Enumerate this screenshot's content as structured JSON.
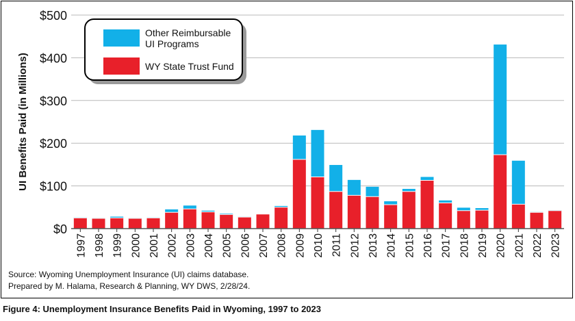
{
  "chart_data": {
    "type": "bar",
    "stacked": true,
    "ylabel": "UI Benefits Paid (in Millions)",
    "ylim": [
      0,
      500
    ],
    "yticks": [
      0,
      100,
      200,
      300,
      400,
      500
    ],
    "ytick_labels": [
      "$0",
      "$100",
      "$200",
      "$300",
      "$400",
      "$500"
    ],
    "grid": "horizontal",
    "legend_position": "top-left",
    "categories": [
      "1997",
      "1998",
      "1999",
      "2000",
      "2001",
      "2002",
      "2003",
      "2004",
      "2005",
      "2006",
      "2007",
      "2008",
      "2009",
      "2010",
      "2011",
      "2012",
      "2013",
      "2014",
      "2015",
      "2016",
      "2017",
      "2018",
      "2019",
      "2020",
      "2021",
      "2022",
      "2023"
    ],
    "series": [
      {
        "name": "WY State Trust Fund",
        "color": "#e8202a",
        "values": [
          25,
          24,
          25,
          24,
          25,
          38,
          46,
          39,
          33,
          27,
          34,
          50,
          162,
          121,
          87,
          78,
          75,
          56,
          87,
          113,
          60,
          42,
          43,
          173,
          57,
          38,
          42
        ]
      },
      {
        "name": "Other Reimbursable UI Programs",
        "color": "#12b0e8",
        "values": [
          1,
          1,
          3,
          1,
          1,
          7,
          8,
          3,
          2,
          1,
          0,
          3,
          56,
          110,
          62,
          36,
          23,
          8,
          6,
          8,
          6,
          7,
          5,
          258,
          102,
          1,
          1
        ]
      }
    ],
    "legend": [
      {
        "label": "Other Reimbursable UI Programs",
        "label_lines": [
          "Other Reimbursable",
          "UI Programs"
        ],
        "color": "#12b0e8"
      },
      {
        "label": "WY State Trust Fund",
        "label_lines": [
          "WY State Trust Fund"
        ],
        "color": "#e8202a"
      }
    ]
  },
  "source_lines": [
    "Source: Wyoming Unemployment Insurance (UI) claims database.",
    "Prepared by M. Halama, Research & Planning, WY DWS, 2/28/24."
  ],
  "caption": "Figure 4: Unemployment Insurance Benefits Paid in Wyoming, 1997 to 2023"
}
